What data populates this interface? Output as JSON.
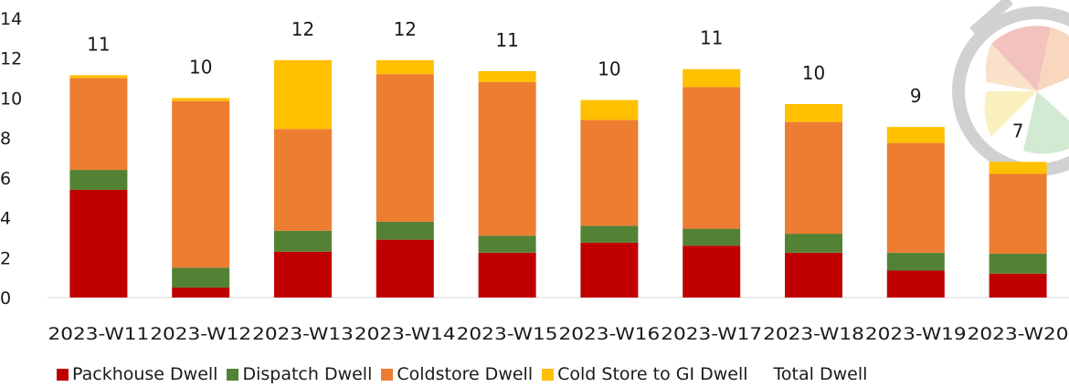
{
  "chart_data": {
    "type": "bar",
    "stacked": true,
    "categories": [
      "2023-W11",
      "2023-W12",
      "2023-W13",
      "2023-W14",
      "2023-W15",
      "2023-W16",
      "2023-W17",
      "2023-W18",
      "2023-W19",
      "2023-W20"
    ],
    "series": [
      {
        "name": "Packhouse Dwell",
        "color": "#c00000",
        "values": [
          5.4,
          0.5,
          2.3,
          2.9,
          2.25,
          2.75,
          2.6,
          2.25,
          1.35,
          1.2
        ]
      },
      {
        "name": "Dispatch Dwell",
        "color": "#548235",
        "values": [
          1.0,
          1.0,
          1.05,
          0.9,
          0.85,
          0.85,
          0.85,
          0.95,
          0.9,
          1.0
        ]
      },
      {
        "name": "Coldstore Dwell",
        "color": "#ed7d31",
        "values": [
          4.6,
          8.35,
          5.1,
          7.4,
          7.7,
          5.3,
          7.1,
          5.6,
          5.5,
          4.0
        ]
      },
      {
        "name": "Cold Store to GI Dwell",
        "color": "#ffc000",
        "values": [
          0.15,
          0.15,
          3.45,
          0.7,
          0.55,
          1.0,
          0.9,
          0.9,
          0.8,
          0.6
        ]
      }
    ],
    "total_series": {
      "name": "Total Dwell",
      "labels": [
        "11",
        "10",
        "12",
        "12",
        "11",
        "10",
        "11",
        "10",
        "9",
        "7"
      ]
    },
    "ylim": [
      0,
      14
    ],
    "yticks": [
      "0",
      "2",
      "4",
      "6",
      "8",
      "10",
      "12",
      "14"
    ],
    "grid": false,
    "legend_position": "bottom",
    "title": "",
    "xlabel": "",
    "ylabel": ""
  }
}
